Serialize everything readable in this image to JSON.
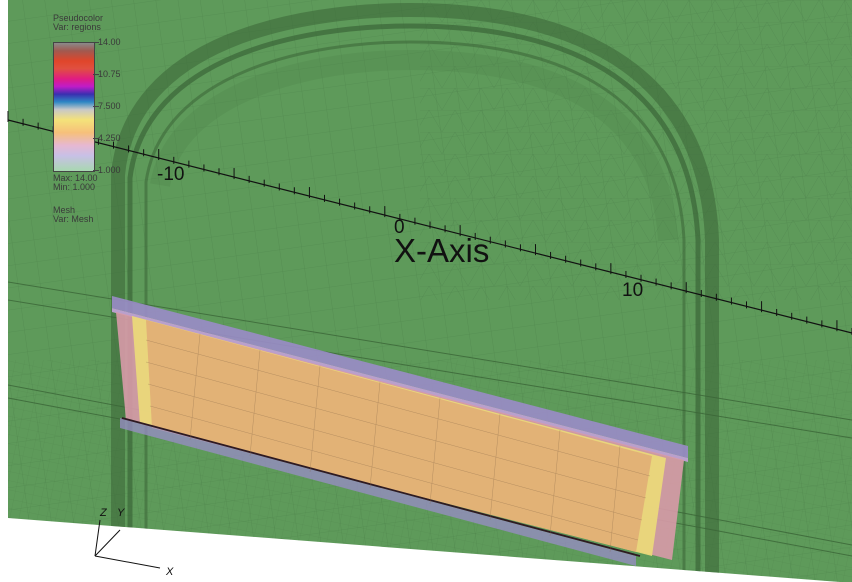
{
  "legend": {
    "plot_type": "Pseudocolor",
    "var": "Var: regions",
    "ticks": [
      "14.00",
      "10.75",
      "7.500",
      "4.250",
      "1.000"
    ],
    "max": "Max: 14.00",
    "min": "Min: 1.000",
    "mesh_title": "Mesh",
    "mesh_var": "Var: Mesh"
  },
  "axis": {
    "title": "X-Axis",
    "labels": [
      "-10",
      "0",
      "10"
    ]
  },
  "triad": {
    "z": "Z",
    "y": "Y",
    "x": "X"
  },
  "colors": {
    "mesh_green": "#5e9a5a",
    "mesh_line": "#3f6e3d",
    "band_purple": "#9a8cc8",
    "band_pink": "#d89aa8",
    "fill_orange": "#e2b276",
    "band_yellow": "#ead87a"
  }
}
